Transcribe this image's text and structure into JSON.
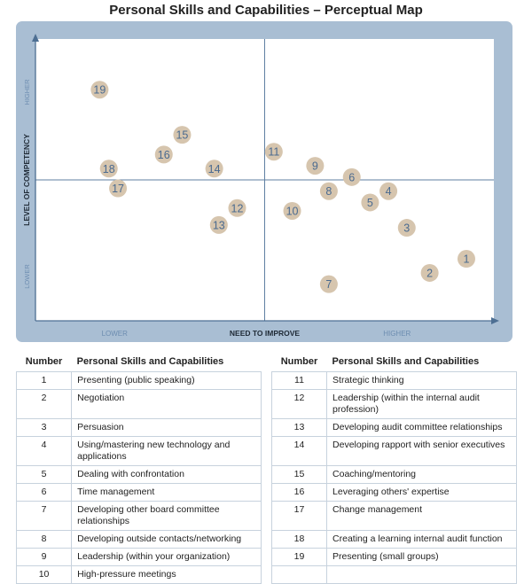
{
  "chart_data": {
    "type": "scatter",
    "title": "Personal Skills and Capabilities – Perceptual Map",
    "xlabel": "NEED TO IMPROVE",
    "ylabel": "LEVEL OF COMPETENCY",
    "x_low_label": "LOWER",
    "x_high_label": "HIGHER",
    "y_low_label": "LOWER",
    "y_high_label": "HIGHER",
    "xlim": [
      0,
      10
    ],
    "ylim": [
      0,
      10
    ],
    "midpoint": [
      5,
      5
    ],
    "grid": false,
    "colors": {
      "frame": "#a9bed3",
      "plot_bg": "#ffffff",
      "axis": "#4d6f93",
      "quadrant_line": "#5f7fa2",
      "marker_fill": "#d6c5ae",
      "marker_text": "#4a6a8f",
      "tick_text": "#6d8db0"
    },
    "points": [
      {
        "label": "1",
        "x": 9.4,
        "y": 2.2
      },
      {
        "label": "2",
        "x": 8.6,
        "y": 1.7
      },
      {
        "label": "3",
        "x": 8.1,
        "y": 3.3
      },
      {
        "label": "4",
        "x": 7.7,
        "y": 4.6
      },
      {
        "label": "5",
        "x": 7.3,
        "y": 4.2
      },
      {
        "label": "6",
        "x": 6.9,
        "y": 5.1
      },
      {
        "label": "7",
        "x": 6.4,
        "y": 1.3
      },
      {
        "label": "8",
        "x": 6.4,
        "y": 4.6
      },
      {
        "label": "9",
        "x": 6.1,
        "y": 5.5
      },
      {
        "label": "10",
        "x": 5.6,
        "y": 3.9
      },
      {
        "label": "11",
        "x": 5.2,
        "y": 6.0
      },
      {
        "label": "12",
        "x": 4.4,
        "y": 4.0
      },
      {
        "label": "13",
        "x": 4.0,
        "y": 3.4
      },
      {
        "label": "14",
        "x": 3.9,
        "y": 5.4
      },
      {
        "label": "15",
        "x": 3.2,
        "y": 6.6
      },
      {
        "label": "16",
        "x": 2.8,
        "y": 5.9
      },
      {
        "label": "17",
        "x": 1.8,
        "y": 4.7
      },
      {
        "label": "18",
        "x": 1.6,
        "y": 5.4
      },
      {
        "label": "19",
        "x": 1.4,
        "y": 8.2
      }
    ]
  },
  "table": {
    "headers": {
      "number": "Number",
      "skill": "Personal Skills and Capabilities"
    },
    "left": [
      {
        "num": "1",
        "name": "Presenting (public speaking)"
      },
      {
        "num": "2",
        "name": "Negotiation"
      },
      {
        "num": "3",
        "name": "Persuasion"
      },
      {
        "num": "4",
        "name": "Using/mastering new technology and applications"
      },
      {
        "num": "5",
        "name": "Dealing with confrontation"
      },
      {
        "num": "6",
        "name": "Time management"
      },
      {
        "num": "7",
        "name": "Developing other board committee relationships"
      },
      {
        "num": "8",
        "name": "Developing outside contacts/networking"
      },
      {
        "num": "9",
        "name": "Leadership (within your organization)"
      },
      {
        "num": "10",
        "name": "High-pressure meetings"
      }
    ],
    "right": [
      {
        "num": "11",
        "name": "Strategic thinking"
      },
      {
        "num": "12",
        "name": "Leadership (within the internal audit profession)"
      },
      {
        "num": "13",
        "name": "Developing audit committee relationships"
      },
      {
        "num": "14",
        "name": "Developing rapport with senior executives"
      },
      {
        "num": "15",
        "name": "Coaching/mentoring"
      },
      {
        "num": "16",
        "name": "Leveraging others' expertise"
      },
      {
        "num": "17",
        "name": "Change management"
      },
      {
        "num": "18",
        "name": "Creating a learning internal audit function"
      },
      {
        "num": "19",
        "name": "Presenting (small groups)"
      }
    ]
  }
}
